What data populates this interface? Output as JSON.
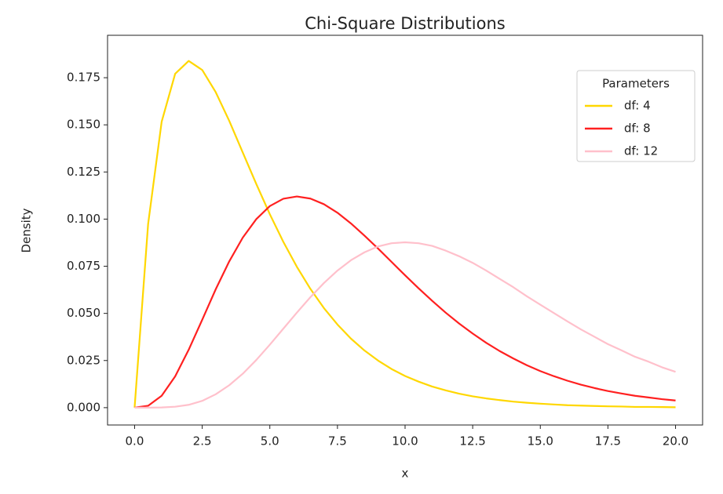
{
  "chart_data": {
    "type": "line",
    "title": "Chi-Square Distributions",
    "x_label": "x",
    "y_label": "Density",
    "legend_title": "Parameters",
    "legend": "upper right",
    "x": [
      0,
      0.5,
      1,
      1.5,
      2,
      2.5,
      3,
      3.5,
      4,
      4.5,
      5,
      5.5,
      6,
      6.5,
      7,
      7.5,
      8,
      8.5,
      9,
      9.5,
      10,
      10.5,
      11,
      11.5,
      12,
      12.5,
      13,
      13.5,
      14,
      14.5,
      15,
      15.5,
      16,
      16.5,
      17,
      17.5,
      18,
      18.5,
      19,
      19.5,
      20
    ],
    "series": [
      {
        "name": "df: 4",
        "color": "#ffd700",
        "values": [
          0,
          0.0974,
          0.1516,
          0.1771,
          0.1839,
          0.1791,
          0.1673,
          0.1521,
          0.1353,
          0.1186,
          0.1026,
          0.0879,
          0.0747,
          0.063,
          0.0528,
          0.0441,
          0.0366,
          0.0303,
          0.025,
          0.0205,
          0.0168,
          0.0138,
          0.0112,
          0.0092,
          0.0074,
          0.006,
          0.0049,
          0.004,
          0.0032,
          0.0026,
          0.0021,
          0.0017,
          0.0013,
          0.0011,
          0.0009,
          0.0007,
          0.0006,
          0.0004,
          0.0004,
          0.0003,
          0.0002
        ]
      },
      {
        "name": "df: 8",
        "color": "#ff2020",
        "values": [
          0,
          0.001,
          0.0063,
          0.0166,
          0.0307,
          0.0466,
          0.0628,
          0.0776,
          0.0902,
          0.1,
          0.1069,
          0.1108,
          0.112,
          0.1109,
          0.1079,
          0.1034,
          0.0977,
          0.0912,
          0.0844,
          0.0773,
          0.0702,
          0.0633,
          0.0567,
          0.0504,
          0.0446,
          0.0393,
          0.0344,
          0.03,
          0.0261,
          0.0225,
          0.0194,
          0.0167,
          0.0143,
          0.0122,
          0.0104,
          0.0088,
          0.0075,
          0.0063,
          0.0054,
          0.0045,
          0.0038
        ]
      },
      {
        "name": "df: 12",
        "color": "#ffc0cb",
        "values": [
          0,
          0,
          0.0001,
          0.0005,
          0.0015,
          0.0036,
          0.0071,
          0.0119,
          0.018,
          0.0253,
          0.0334,
          0.0419,
          0.0504,
          0.0586,
          0.0661,
          0.0727,
          0.0782,
          0.0824,
          0.0855,
          0.0872,
          0.0877,
          0.0872,
          0.0858,
          0.0833,
          0.0803,
          0.0768,
          0.0727,
          0.0683,
          0.0639,
          0.0591,
          0.0546,
          0.0502,
          0.0458,
          0.0415,
          0.0376,
          0.0337,
          0.0304,
          0.027,
          0.0244,
          0.0214,
          0.019
        ]
      }
    ],
    "xlim": [
      -1,
      21
    ],
    "ylim": [
      -0.0092,
      0.1975
    ],
    "xticks": [
      {
        "value": 0,
        "label": "0.0"
      },
      {
        "value": 2.5,
        "label": "2.5"
      },
      {
        "value": 5,
        "label": "5.0"
      },
      {
        "value": 7.5,
        "label": "7.5"
      },
      {
        "value": 10,
        "label": "10.0"
      },
      {
        "value": 12.5,
        "label": "12.5"
      },
      {
        "value": 15,
        "label": "15.0"
      },
      {
        "value": 17.5,
        "label": "17.5"
      },
      {
        "value": 20,
        "label": "20.0"
      }
    ],
    "yticks": [
      {
        "value": 0,
        "label": "0.000"
      },
      {
        "value": 0.025,
        "label": "0.025"
      },
      {
        "value": 0.05,
        "label": "0.050"
      },
      {
        "value": 0.075,
        "label": "0.075"
      },
      {
        "value": 0.1,
        "label": "0.100"
      },
      {
        "value": 0.125,
        "label": "0.125"
      },
      {
        "value": 0.15,
        "label": "0.150"
      },
      {
        "value": 0.175,
        "label": "0.175"
      }
    ],
    "grid": false
  }
}
